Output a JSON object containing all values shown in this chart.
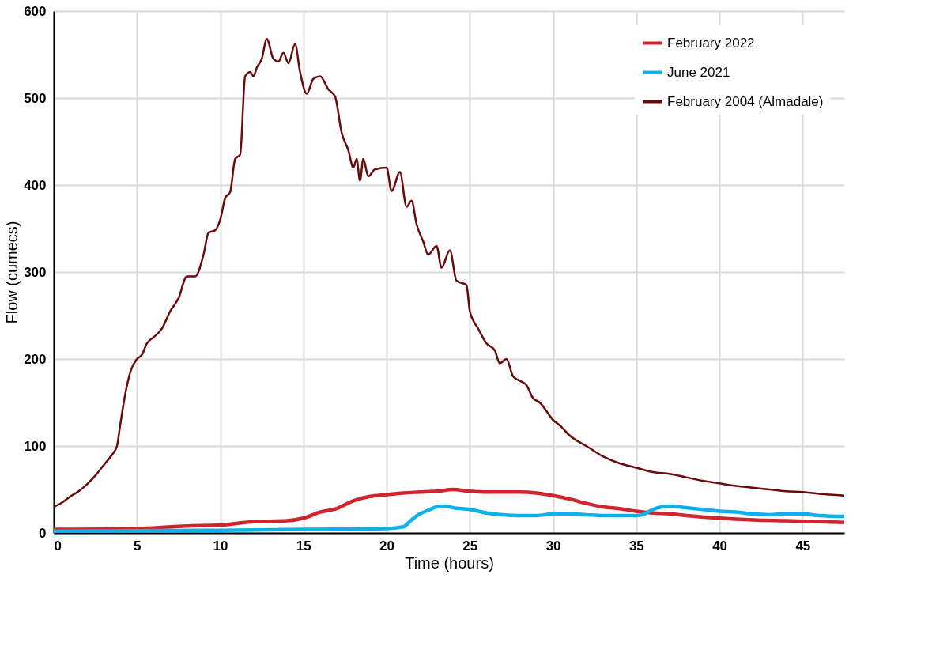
{
  "chart_data": {
    "type": "line",
    "xlabel": "Time (hours)",
    "ylabel": "Flow (cumecs)",
    "xlim": [
      0,
      47.5
    ],
    "ylim": [
      0,
      600
    ],
    "xticks": [
      0,
      5,
      10,
      15,
      20,
      25,
      30,
      35,
      40,
      45
    ],
    "yticks": [
      0,
      100,
      200,
      300,
      400,
      500,
      600
    ],
    "grid": true,
    "legend": "top right",
    "line_style": "solid",
    "marker": "none",
    "series": [
      {
        "name": "February 2022",
        "color": "#d0252c",
        "x": [
          0,
          5,
          8,
          10,
          11,
          12,
          14,
          15,
          16,
          17,
          18,
          19,
          20,
          21,
          22,
          23,
          24,
          25,
          26,
          27,
          28,
          29,
          30,
          31,
          32,
          33,
          34,
          35,
          36,
          37,
          38,
          40,
          42,
          44,
          46,
          47.5
        ],
        "values": [
          4,
          5,
          8,
          9,
          11,
          13,
          14,
          17,
          24,
          28,
          37,
          42,
          44,
          46,
          47,
          48,
          50,
          48,
          47,
          47,
          47,
          46,
          43,
          39,
          34,
          30,
          28,
          25,
          23,
          22,
          20,
          17,
          15,
          14,
          13,
          12
        ]
      },
      {
        "name": "June 2021",
        "color": "#0cb0ea",
        "x": [
          0,
          10,
          15,
          20,
          21,
          21.5,
          22,
          22.5,
          23,
          23.5,
          24,
          25,
          26,
          27,
          28,
          29,
          30,
          31,
          32,
          33,
          34,
          35,
          35.5,
          36,
          36.5,
          37,
          38,
          39,
          40,
          41,
          42,
          43,
          44,
          45,
          46,
          47.5
        ],
        "values": [
          2,
          3,
          4,
          5,
          7,
          15,
          22,
          26,
          30,
          31,
          29,
          27,
          23,
          21,
          20,
          20,
          22,
          22,
          21,
          20,
          20,
          20,
          22,
          27,
          30,
          31,
          29,
          27,
          25,
          24,
          22,
          21,
          22,
          22,
          20,
          19
        ]
      },
      {
        "name": "February 2004 (Almadale)",
        "color": "#6b0a0a",
        "x": [
          0,
          0.5,
          1,
          1.5,
          2,
          2.5,
          3,
          3.5,
          3.8,
          4,
          4.3,
          4.6,
          5,
          5.3,
          5.6,
          6,
          6.5,
          7,
          7.5,
          8,
          8.5,
          9,
          9.3,
          9.7,
          10,
          10.3,
          10.6,
          10.9,
          11.2,
          11.5,
          11.8,
          12,
          12.2,
          12.5,
          12.8,
          13.2,
          13.5,
          13.8,
          14.1,
          14.5,
          14.8,
          15.2,
          15.6,
          16,
          16.5,
          16.9,
          17.3,
          17.7,
          18,
          18.2,
          18.4,
          18.6,
          18.9,
          19.3,
          20,
          20.3,
          20.8,
          21.2,
          21.5,
          21.8,
          22.2,
          22.5,
          23,
          23.3,
          23.8,
          24.2,
          24.8,
          25,
          25.5,
          26,
          26.5,
          26.8,
          27.2,
          27.6,
          28,
          28.4,
          28.8,
          29.2,
          30,
          30.5,
          31,
          32,
          33,
          34,
          35,
          36,
          37,
          38,
          39,
          40,
          41,
          42,
          43,
          44,
          45,
          46,
          47.5
        ],
        "values": [
          30,
          35,
          42,
          48,
          56,
          66,
          78,
          90,
          100,
          125,
          160,
          185,
          200,
          205,
          218,
          225,
          235,
          255,
          270,
          295,
          295,
          320,
          345,
          348,
          360,
          385,
          392,
          430,
          435,
          525,
          530,
          525,
          535,
          545,
          568,
          545,
          542,
          552,
          540,
          562,
          530,
          505,
          522,
          525,
          510,
          502,
          460,
          440,
          420,
          430,
          405,
          430,
          410,
          418,
          420,
          393,
          415,
          375,
          382,
          355,
          335,
          320,
          330,
          305,
          325,
          290,
          285,
          255,
          235,
          218,
          210,
          195,
          200,
          180,
          175,
          170,
          155,
          150,
          130,
          122,
          112,
          100,
          88,
          80,
          75,
          70,
          68,
          64,
          60,
          57,
          54,
          52,
          50,
          48,
          47,
          45,
          43
        ]
      }
    ]
  }
}
